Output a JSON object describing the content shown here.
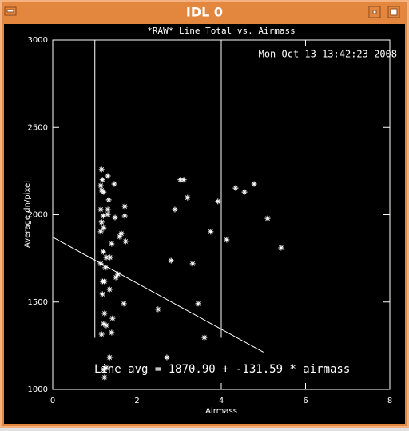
{
  "window": {
    "title": "IDL 0"
  },
  "chart_data": {
    "type": "scatter",
    "title": "*RAW* Line Total vs. Airmass",
    "timestamp": "Mon Oct 13 13:42:23 2008",
    "x_label": "Airmass",
    "y_label": "Average dn/pixel",
    "annotation": "Line avg = 1870.90 + -131.59 * airmass",
    "color": "#ffffff",
    "xlim": [
      0,
      8
    ],
    "xticks": [
      0,
      2,
      4,
      6,
      8
    ],
    "ylim": [
      1000,
      3000
    ],
    "yticks": [
      1000,
      1500,
      2000,
      2500,
      3000
    ],
    "vlines": [
      1,
      4
    ],
    "vline_bottom": 1295,
    "fit": {
      "intercept": 1870.9,
      "slope": -131.59,
      "xrange": [
        0,
        5
      ]
    },
    "x": [
      1.16,
      1.31,
      1.18,
      1.14,
      1.16,
      1.21,
      1.46,
      1.33,
      1.31,
      1.14,
      1.2,
      1.31,
      1.16,
      1.21,
      1.14,
      1.48,
      1.71,
      1.71,
      1.63,
      1.59,
      1.73,
      1.4,
      1.2,
      1.27,
      1.36,
      1.14,
      1.25,
      1.55,
      1.5,
      1.18,
      1.23,
      1.18,
      1.35,
      1.69,
      1.42,
      1.23,
      1.21,
      1.27,
      1.16,
      1.4,
      1.35,
      1.21,
      1.23,
      1.27,
      3.03,
      3.11,
      3.2,
      2.9,
      3.92,
      4.34,
      4.55,
      4.78,
      3.75,
      4.13,
      5.1,
      5.42,
      2.81,
      3.32,
      3.45,
      2.5,
      3.6,
      2.71
    ],
    "values": [
      2259,
      2222,
      2200,
      2167,
      2140,
      2130,
      2176,
      2085,
      2030,
      2030,
      1993,
      2002,
      1957,
      1924,
      1902,
      1984,
      2048,
      1993,
      1892,
      1874,
      1847,
      1833,
      1787,
      1755,
      1755,
      1719,
      1696,
      1659,
      1641,
      1618,
      1618,
      1545,
      1572,
      1490,
      1407,
      1435,
      1375,
      1366,
      1316,
      1325,
      1183,
      1114,
      1069,
      1123,
      2200,
      2200,
      2098,
      2030,
      2076,
      2153,
      2130,
      2176,
      1902,
      1856,
      1979,
      1810,
      1737,
      1719,
      1490,
      1458,
      1297,
      1183
    ]
  }
}
